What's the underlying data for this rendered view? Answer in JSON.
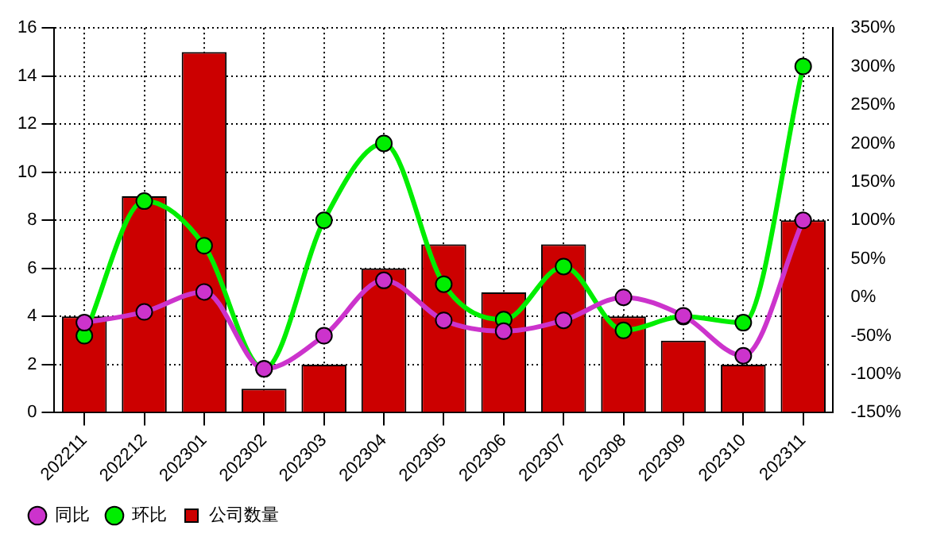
{
  "chart_data": {
    "type": "bar",
    "categories": [
      "202211",
      "202212",
      "202301",
      "202302",
      "202303",
      "202304",
      "202305",
      "202306",
      "202307",
      "202308",
      "202309",
      "202310",
      "202311"
    ],
    "series": [
      {
        "name": "同比",
        "type": "line",
        "axis": "y2",
        "color": "#cc33cc",
        "values": [
          -33,
          -19,
          7,
          -93,
          -50,
          22,
          -30,
          -44,
          -30,
          0,
          -24,
          -76,
          100
        ]
      },
      {
        "name": "环比",
        "type": "line",
        "axis": "y2",
        "color": "#00ee00",
        "values": [
          -50,
          125,
          67,
          -93,
          100,
          200,
          17,
          -29,
          40,
          -43,
          -25,
          -33,
          300
        ]
      },
      {
        "name": "公司数量",
        "color": "#cc0000",
        "values": [
          4,
          9,
          15,
          1,
          2,
          6,
          7,
          5,
          7,
          4,
          3,
          2,
          8
        ]
      }
    ],
    "ylim": [
      0,
      16
    ],
    "yticks": [
      0,
      2,
      4,
      6,
      8,
      10,
      12,
      14,
      16
    ],
    "y2lim": [
      -150,
      350
    ],
    "y2ticks": [
      {
        "value": -150,
        "label": "-150%"
      },
      {
        "value": -100,
        "label": "-100%"
      },
      {
        "value": -50,
        "label": "-50%"
      },
      {
        "value": 0,
        "label": "0%"
      },
      {
        "value": 50,
        "label": "50%"
      },
      {
        "value": 100,
        "label": "100%"
      },
      {
        "value": 150,
        "label": "150%"
      },
      {
        "value": 200,
        "label": "200%"
      },
      {
        "value": 250,
        "label": "250%"
      },
      {
        "value": 300,
        "label": "300%"
      },
      {
        "value": 350,
        "label": "350%"
      }
    ],
    "grid": true,
    "legend": "bottom",
    "marker": "circle"
  }
}
